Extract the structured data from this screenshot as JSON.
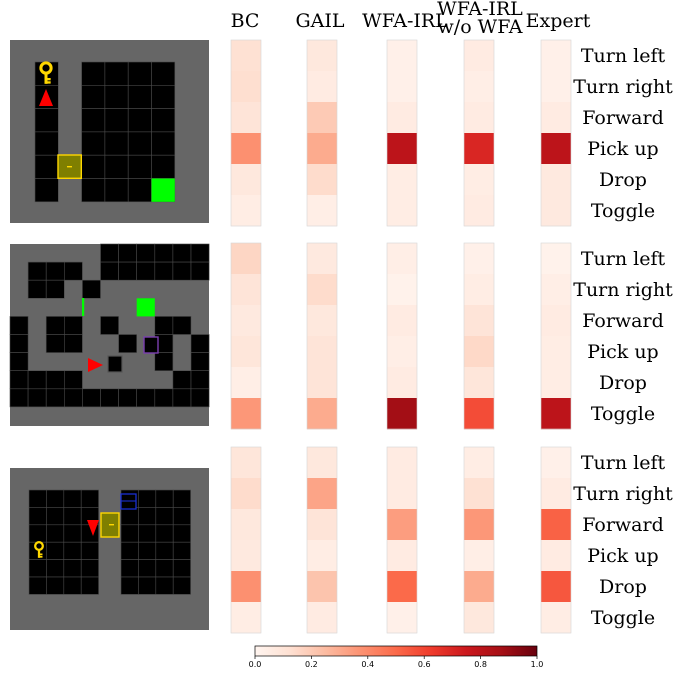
{
  "chart_data": {
    "type": "heatmap",
    "methods": [
      "BC",
      "GAIL",
      "WFA-IRL",
      "WFA-IRL w/o WFA",
      "Expert"
    ],
    "method_header_lines": [
      [
        "BC"
      ],
      [
        "GAIL"
      ],
      [
        "WFA-IRL"
      ],
      [
        "WFA-IRL",
        "w/o WFA"
      ],
      [
        "Expert"
      ]
    ],
    "actions": [
      "Turn left",
      "Turn right",
      "Forward",
      "Pick up",
      "Drop",
      "Toggle"
    ],
    "colormap": "Reds",
    "colorbar": {
      "range": [
        0.0,
        1.0
      ],
      "ticks": [
        "0.0",
        "0.2",
        "0.4",
        "0.6",
        "0.8",
        "1.0"
      ]
    },
    "rows": [
      {
        "environment": "key-door room",
        "values": {
          "BC": [
            0.12,
            0.13,
            0.1,
            0.38,
            0.08,
            0.05
          ],
          "GAIL": [
            0.08,
            0.06,
            0.2,
            0.3,
            0.14,
            0.04
          ],
          "WFA-IRL": [
            0.03,
            0.03,
            0.06,
            0.8,
            0.05,
            0.05
          ],
          "WFA-IRL w/o WFA": [
            0.06,
            0.04,
            0.06,
            0.7,
            0.05,
            0.06
          ],
          "Expert": [
            0.03,
            0.03,
            0.06,
            0.8,
            0.07,
            0.07
          ]
        }
      },
      {
        "environment": "maze room",
        "values": {
          "BC": [
            0.16,
            0.1,
            0.07,
            0.09,
            0.04,
            0.36
          ],
          "GAIL": [
            0.07,
            0.14,
            0.08,
            0.1,
            0.1,
            0.3
          ],
          "WFA-IRL": [
            0.04,
            0.02,
            0.06,
            0.04,
            0.06,
            0.88
          ],
          "WFA-IRL w/o WFA": [
            0.03,
            0.05,
            0.1,
            0.15,
            0.09,
            0.58
          ],
          "Expert": [
            0.02,
            0.04,
            0.06,
            0.05,
            0.05,
            0.8
          ]
        }
      },
      {
        "environment": "box-door room",
        "values": {
          "BC": [
            0.09,
            0.14,
            0.08,
            0.07,
            0.38,
            0.05
          ],
          "GAIL": [
            0.08,
            0.32,
            0.1,
            0.05,
            0.22,
            0.06
          ],
          "WFA-IRL": [
            0.06,
            0.06,
            0.34,
            0.06,
            0.5,
            0.03
          ],
          "WFA-IRL w/o WFA": [
            0.05,
            0.12,
            0.36,
            0.04,
            0.3,
            0.08
          ],
          "Expert": [
            0.03,
            0.06,
            0.52,
            0.06,
            0.55,
            0.05
          ]
        }
      }
    ]
  }
}
